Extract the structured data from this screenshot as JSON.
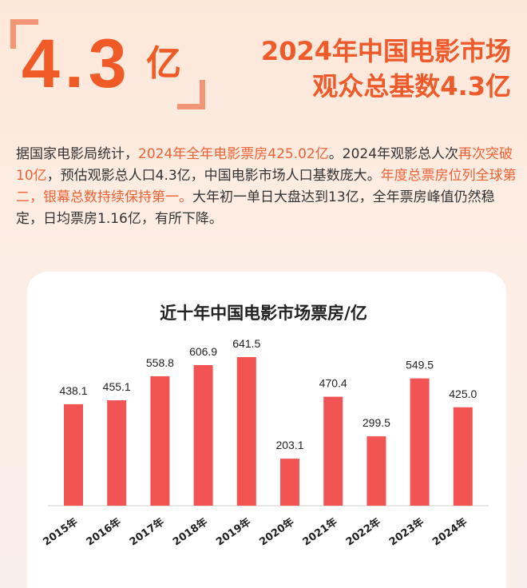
{
  "hero": {
    "big_number": "4.3",
    "big_unit": "亿",
    "headline_line1": "2024年中国电影市场",
    "headline_line2": "观众总基数4.3亿"
  },
  "paragraph": [
    {
      "text": "据国家电影局统计，",
      "highlight": false
    },
    {
      "text": "2024年全年电影票房425.02亿",
      "highlight": true
    },
    {
      "text": "。2024年观影总人次",
      "highlight": false
    },
    {
      "text": "再次突破10亿",
      "highlight": true
    },
    {
      "text": "，预估观影总人口4.3亿，中国电影市场人口基数庞大。",
      "highlight": false
    },
    {
      "text": "年度总票房位列全球第二，银幕总数持续保持第一。",
      "highlight": true
    },
    {
      "text": "大年初一单日大盘达到13亿，全年票房峰值仍然稳定，日均票房1.16亿，有所下降。",
      "highlight": false
    }
  ],
  "colors": {
    "accent": "#f05a26",
    "highlight_text": "#ef6236",
    "bar": "#f25454"
  },
  "chart_data": {
    "type": "bar",
    "title": "近十年中国电影市场票房/亿",
    "categories": [
      "2015年",
      "2016年",
      "2017年",
      "2018年",
      "2019年",
      "2020年",
      "2021年",
      "2022年",
      "2023年",
      "2024年"
    ],
    "values": [
      438.1,
      455.1,
      558.8,
      606.9,
      641.5,
      203.1,
      470.4,
      299.5,
      549.5,
      425.0
    ],
    "value_labels": [
      "438.1",
      "455.1",
      "558.8",
      "606.9",
      "641.5",
      "203.1",
      "470.4",
      "299.5",
      "549.5",
      "425.0"
    ],
    "xlabel": "",
    "ylabel": "",
    "ylim": [
      0,
      700
    ],
    "grid": false,
    "legend": "none"
  }
}
